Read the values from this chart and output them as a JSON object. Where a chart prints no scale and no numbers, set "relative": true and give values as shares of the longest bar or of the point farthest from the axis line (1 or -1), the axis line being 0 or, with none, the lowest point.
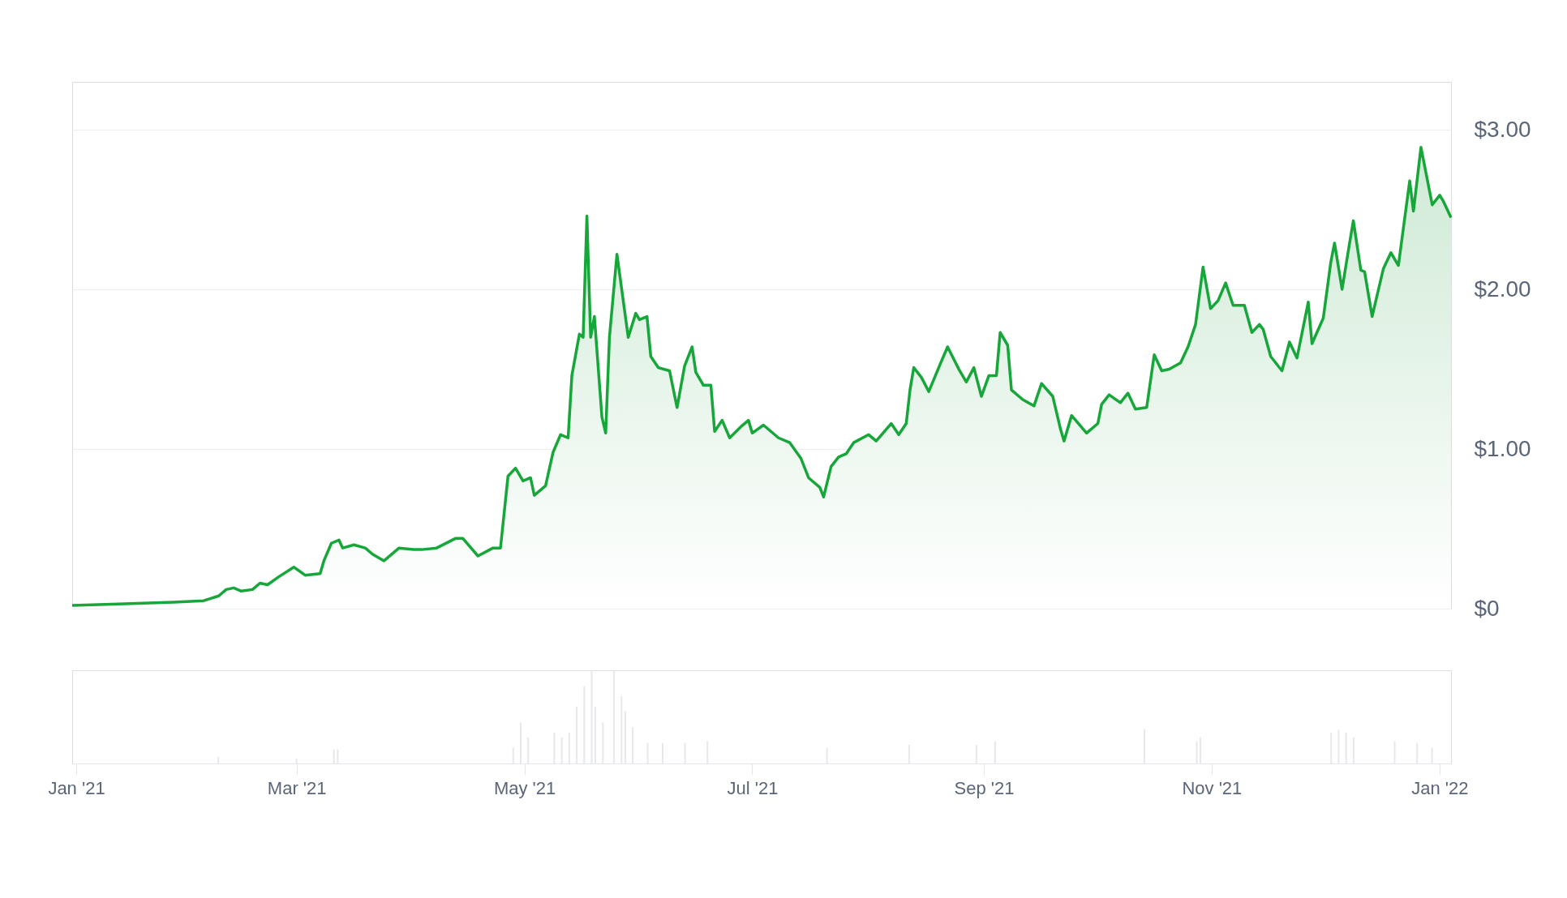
{
  "chart_data": [
    {
      "type": "area",
      "grid": "y",
      "tick_labels": "y",
      "x": [
        "2021-01-01",
        "2021-01-15",
        "2021-01-28",
        "2021-02-05",
        "2021-02-09",
        "2021-02-11",
        "2021-02-13",
        "2021-02-15",
        "2021-02-18",
        "2021-02-20",
        "2021-02-22",
        "2021-02-25",
        "2021-03-01",
        "2021-03-04",
        "2021-03-08",
        "2021-03-09",
        "2021-03-11",
        "2021-03-13",
        "2021-03-14",
        "2021-03-17",
        "2021-03-20",
        "2021-03-22",
        "2021-03-25",
        "2021-03-29",
        "2021-04-02",
        "2021-04-04",
        "2021-04-08",
        "2021-04-13",
        "2021-04-15",
        "2021-04-19",
        "2021-04-23",
        "2021-04-25",
        "2021-04-27",
        "2021-04-29",
        "2021-05-01",
        "2021-05-03",
        "2021-05-04",
        "2021-05-07",
        "2021-05-09",
        "2021-05-11",
        "2021-05-13",
        "2021-05-14",
        "2021-05-16",
        "2021-05-17",
        "2021-05-18",
        "2021-05-19",
        "2021-05-20",
        "2021-05-22",
        "2021-05-23",
        "2021-05-24",
        "2021-05-26",
        "2021-05-29",
        "2021-05-31",
        "2021-06-01",
        "2021-06-03",
        "2021-06-04",
        "2021-06-06",
        "2021-06-09",
        "2021-06-11",
        "2021-06-13",
        "2021-06-15",
        "2021-06-16",
        "2021-06-18",
        "2021-06-20",
        "2021-06-21",
        "2021-06-23",
        "2021-06-25",
        "2021-06-28",
        "2021-06-30",
        "2021-07-01",
        "2021-07-04",
        "2021-07-08",
        "2021-07-11",
        "2021-07-14",
        "2021-07-16",
        "2021-07-19",
        "2021-07-20",
        "2021-07-22",
        "2021-07-24",
        "2021-07-26",
        "2021-07-28",
        "2021-08-01",
        "2021-08-03",
        "2021-08-07",
        "2021-08-09",
        "2021-08-11",
        "2021-08-12",
        "2021-08-13",
        "2021-08-15",
        "2021-08-17",
        "2021-08-20",
        "2021-08-22",
        "2021-08-25",
        "2021-08-27",
        "2021-08-29",
        "2021-08-31",
        "2021-09-02",
        "2021-09-04",
        "2021-09-05",
        "2021-09-07",
        "2021-09-08",
        "2021-09-11",
        "2021-09-14",
        "2021-09-16",
        "2021-09-19",
        "2021-09-21",
        "2021-09-22",
        "2021-09-24",
        "2021-09-28",
        "2021-10-01",
        "2021-10-02",
        "2021-10-04",
        "2021-10-07",
        "2021-10-09",
        "2021-10-11",
        "2021-10-14",
        "2021-10-16",
        "2021-10-18",
        "2021-10-20",
        "2021-10-23",
        "2021-10-25",
        "2021-10-27",
        "2021-10-29",
        "2021-10-31",
        "2021-11-02",
        "2021-11-04",
        "2021-11-06",
        "2021-11-09",
        "2021-11-11",
        "2021-11-13",
        "2021-11-14",
        "2021-11-16",
        "2021-11-19",
        "2021-11-21",
        "2021-11-23",
        "2021-11-26",
        "2021-11-27",
        "2021-11-30",
        "2021-12-02",
        "2021-12-03",
        "2021-12-05",
        "2021-12-07",
        "2021-12-08",
        "2021-12-10",
        "2021-12-11",
        "2021-12-13",
        "2021-12-16",
        "2021-12-18",
        "2021-12-20",
        "2021-12-23",
        "2021-12-24",
        "2021-12-26",
        "2021-12-29",
        "2021-12-31",
        "2022-01-01",
        "2022-01-03"
      ],
      "series": [
        {
          "color": "#16a63a",
          "values": [
            0.02,
            0.03,
            0.04,
            0.05,
            0.08,
            0.12,
            0.13,
            0.11,
            0.12,
            0.16,
            0.15,
            0.2,
            0.26,
            0.21,
            0.22,
            0.3,
            0.41,
            0.43,
            0.38,
            0.4,
            0.38,
            0.34,
            0.3,
            0.38,
            0.37,
            0.37,
            0.38,
            0.44,
            0.44,
            0.33,
            0.38,
            0.38,
            0.83,
            0.88,
            0.8,
            0.82,
            0.71,
            0.77,
            0.98,
            1.09,
            1.07,
            1.46,
            1.72,
            1.7,
            2.46,
            1.7,
            1.83,
            1.2,
            1.1,
            1.7,
            2.22,
            1.7,
            1.85,
            1.81,
            1.83,
            1.58,
            1.51,
            1.49,
            1.26,
            1.52,
            1.64,
            1.48,
            1.4,
            1.4,
            1.11,
            1.18,
            1.07,
            1.14,
            1.18,
            1.1,
            1.15,
            1.07,
            1.04,
            0.94,
            0.82,
            0.76,
            0.7,
            0.89,
            0.95,
            0.97,
            1.04,
            1.09,
            1.05,
            1.16,
            1.09,
            1.16,
            1.37,
            1.51,
            1.45,
            1.36,
            1.53,
            1.64,
            1.5,
            1.42,
            1.51,
            1.33,
            1.46,
            1.46,
            1.73,
            1.65,
            1.37,
            1.31,
            1.27,
            1.41,
            1.33,
            1.13,
            1.05,
            1.21,
            1.1,
            1.16,
            1.28,
            1.34,
            1.29,
            1.35,
            1.25,
            1.26,
            1.59,
            1.49,
            1.5,
            1.54,
            1.64,
            1.78,
            2.14,
            1.88,
            1.93,
            2.04,
            1.9,
            1.9,
            1.73,
            1.78,
            1.75,
            1.58,
            1.49,
            1.67,
            1.57,
            1.92,
            1.66,
            1.82,
            2.17,
            2.29,
            2.0,
            2.29,
            2.43,
            2.12,
            2.11,
            1.83,
            2.13,
            2.23,
            2.15,
            2.68,
            2.49,
            2.89,
            2.53,
            2.59,
            2.55,
            2.45
          ]
        }
      ],
      "xlim": [
        "2021-01-01",
        "2022-01-03"
      ],
      "ylim": [
        0,
        3.3
      ],
      "yticks": [
        {
          "value": 0,
          "label": "$0"
        },
        {
          "value": 1,
          "label": "$1.00"
        },
        {
          "value": 2,
          "label": "$2.00"
        },
        {
          "value": 3,
          "label": "$3.00"
        }
      ]
    },
    {
      "type": "bar",
      "relative": true,
      "tick_labels": "x",
      "color": "#e6e8eb",
      "x": [
        "2021-02-08",
        "2021-03-01",
        "2021-03-11",
        "2021-03-12",
        "2021-04-28",
        "2021-04-30",
        "2021-05-02",
        "2021-05-09",
        "2021-05-11",
        "2021-05-13",
        "2021-05-15",
        "2021-05-17",
        "2021-05-19",
        "2021-05-20",
        "2021-05-22",
        "2021-05-25",
        "2021-05-27",
        "2021-05-28",
        "2021-05-30",
        "2021-06-03",
        "2021-06-07",
        "2021-06-13",
        "2021-06-19",
        "2021-07-21",
        "2021-08-12",
        "2021-08-30",
        "2021-09-04",
        "2021-10-14",
        "2021-10-28",
        "2021-10-29",
        "2021-12-03",
        "2021-12-05",
        "2021-12-07",
        "2021-12-09",
        "2021-12-20",
        "2021-12-26",
        "2021-12-30"
      ],
      "values": [
        0.07,
        0.05,
        0.15,
        0.15,
        0.17,
        0.44,
        0.28,
        0.33,
        0.28,
        0.33,
        0.61,
        0.83,
        1,
        0.61,
        0.44,
        1,
        0.72,
        0.56,
        0.39,
        0.22,
        0.22,
        0.22,
        0.24,
        0.17,
        0.2,
        0.2,
        0.24,
        0.37,
        0.24,
        0.28,
        0.33,
        0.36,
        0.33,
        0.28,
        0.24,
        0.22,
        0.17
      ],
      "xlim": [
        "2021-01-01",
        "2022-01-03"
      ],
      "xticks": [
        {
          "value": "2021-01-01",
          "label": "Jan '21"
        },
        {
          "value": "2021-03-01",
          "label": "Mar '21"
        },
        {
          "value": "2021-05-01",
          "label": "May '21"
        },
        {
          "value": "2021-07-01",
          "label": "Jul '21"
        },
        {
          "value": "2021-09-01",
          "label": "Sep '21"
        },
        {
          "value": "2021-11-01",
          "label": "Nov '21"
        },
        {
          "value": "2022-01-01",
          "label": "Jan '22"
        }
      ]
    }
  ]
}
